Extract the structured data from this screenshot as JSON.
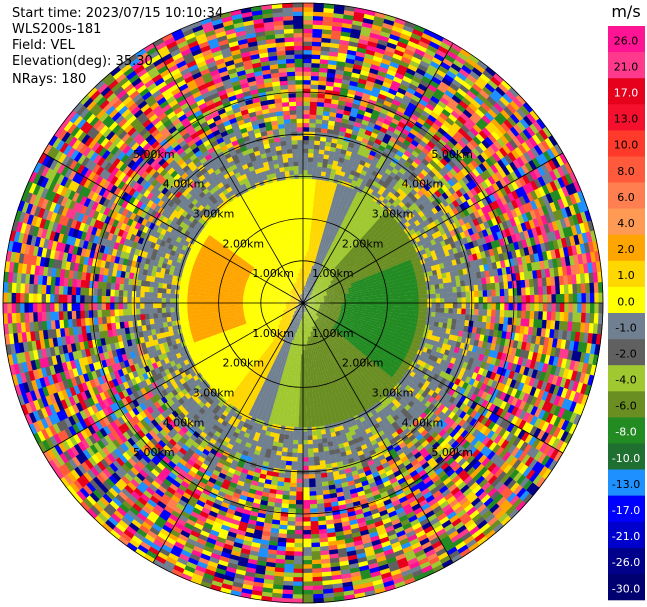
{
  "header": {
    "start_time": "Start time: 2023/07/15 10:10:34",
    "instrument": "WLS200s-181",
    "field": "Field: VEL",
    "elevation": "Elevation(deg): 35.30",
    "nrays": "NRays: 180"
  },
  "ppi": {
    "ring_labels": [
      "1.00km",
      "2.00km",
      "3.00km",
      "4.00km",
      "5.00km"
    ],
    "spokes_deg": [
      0,
      30,
      60,
      90,
      120,
      150,
      180,
      210,
      240,
      270,
      300,
      330
    ],
    "label_angles_deg": [
      45,
      135,
      225,
      315
    ],
    "max_range_km": 6.9
  },
  "colorbar": {
    "unit": "m/s",
    "ticks": [
      "26.0",
      "21.0",
      "17.0",
      "13.0",
      "10.0",
      "8.0",
      "6.0",
      "4.0",
      "2.0",
      "1.0",
      "0.0",
      "-1.0",
      "-2.0",
      "-4.0",
      "-6.0",
      "-8.0",
      "-10.0",
      "-13.0",
      "-17.0",
      "-21.0",
      "-26.0",
      "-30.0"
    ],
    "colors": [
      "#ff1493",
      "#ff3a8c",
      "#e6001c",
      "#f5112d",
      "#ff3a2a",
      "#ff5a3c",
      "#ff7f50",
      "#ff9a55",
      "#ffa500",
      "#ffd700",
      "#ffff00",
      "#708090",
      "#606060",
      "#a0c830",
      "#6b8e23",
      "#228b22",
      "#1e6f30",
      "#1e90ff",
      "#0000ff",
      "#0000cd",
      "#00008b",
      "#000070"
    ]
  }
}
